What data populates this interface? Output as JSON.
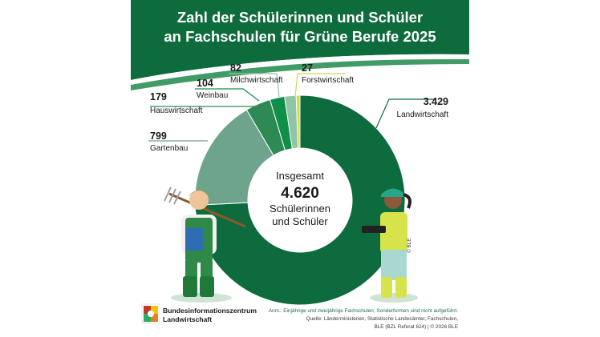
{
  "title": {
    "line1": "Zahl der Schülerinnen und Schüler",
    "line2": "an Fachschulen für Grüne Berufe 2025"
  },
  "center": {
    "line1": "Insgesamt",
    "total": "4.620",
    "line2": "Schülerinnen",
    "line3": "und Schüler"
  },
  "colors": {
    "header": "#0d6b3c",
    "landwirtschaft": "#0e6b3d",
    "gartenbau": "#6fa48c",
    "hauswirtschaft": "#2e8a55",
    "weinbau": "#0f8f48",
    "milchwirtschaft": "#8fc4a6",
    "forstwirtschaft": "#d2d94a"
  },
  "chart_data": {
    "type": "pie",
    "donut": true,
    "title": "Zahl der Schülerinnen und Schüler an Fachschulen für Grüne Berufe 2025",
    "total": 4620,
    "total_label": "4.620",
    "slices": [
      {
        "name": "Landwirtschaft",
        "value": 3429,
        "value_label": "3.429",
        "color": "#0e6b3d"
      },
      {
        "name": "Gartenbau",
        "value": 799,
        "value_label": "799",
        "color": "#6fa48c"
      },
      {
        "name": "Hauswirtschaft",
        "value": 179,
        "value_label": "179",
        "color": "#2e8a55"
      },
      {
        "name": "Weinbau",
        "value": 104,
        "value_label": "104",
        "color": "#0f8f48"
      },
      {
        "name": "Milchwirtschaft",
        "value": 82,
        "value_label": "82",
        "color": "#8fc4a6"
      },
      {
        "name": "Forstwirtschaft",
        "value": 27,
        "value_label": "27",
        "color": "#d2d94a"
      }
    ]
  },
  "footer": {
    "note": "Anm.: Einjährige und zweijährige Fachschulen; Sonderformen sind nicht aufgeführt.",
    "source1": "Quelle: Länderministerien, Statistische Landesämter, Fachschulen,",
    "source2": "BLE (BZL Referat 624) | © 2026 BLE",
    "org_line1": "Bundesinformationszentrum",
    "org_line2": "Landwirtschaft",
    "watermark": "© BLE"
  }
}
